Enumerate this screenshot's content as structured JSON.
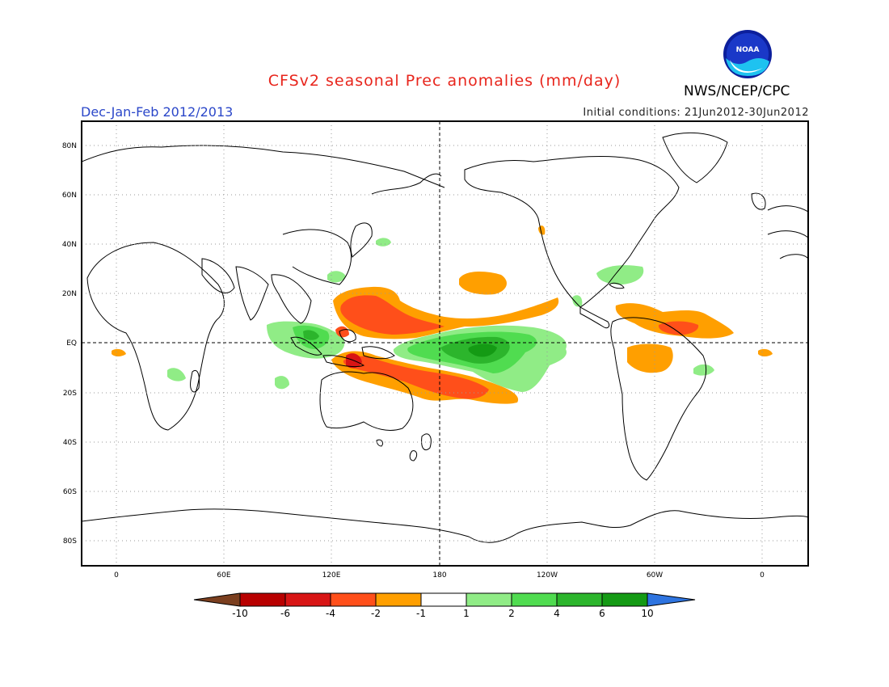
{
  "header": {
    "title": "CFSv2 seasonal Prec anomalies (mm/day)",
    "organization": "NWS/NCEP/CPC",
    "period": "Dec-Jan-Feb 2012/2013",
    "initial_conditions": "Initial conditions: 21Jun2012-30Jun2012",
    "logo_text": "NOAA"
  },
  "map": {
    "projection": "cylindrical equidistant, 20W to 20E across 360 deg",
    "lat_labels": [
      "80N",
      "60N",
      "40N",
      "20N",
      "EQ",
      "20S",
      "40S",
      "60S",
      "80S"
    ],
    "lon_labels": [
      "0",
      "60E",
      "120E",
      "180",
      "120W",
      "60W",
      "0"
    ],
    "grid": "dotted"
  },
  "colorbar": {
    "labels": [
      "-10",
      "-6",
      "-4",
      "-2",
      "-1",
      "1",
      "2",
      "4",
      "6",
      "10"
    ],
    "colors": [
      "#7b3f1f",
      "#b80000",
      "#d81515",
      "#ff4f1a",
      "#ff9f00",
      "#ffffff",
      "#90ec86",
      "#50dc50",
      "#2cb52c",
      "#149a14",
      "#2e74e0"
    ]
  },
  "anomaly_regions": [
    {
      "name": "west-pacific-dry-north",
      "level": "-4"
    },
    {
      "name": "south-pacific-dry",
      "level": "-4"
    },
    {
      "name": "central-pacific-wet",
      "level": "6"
    },
    {
      "name": "maritime-continent-wet",
      "level": "2"
    },
    {
      "name": "central-pacific-dry-north",
      "level": "-2"
    },
    {
      "name": "amazon-dry",
      "level": "-2"
    },
    {
      "name": "north-brazil-dry",
      "level": "-4"
    }
  ]
}
